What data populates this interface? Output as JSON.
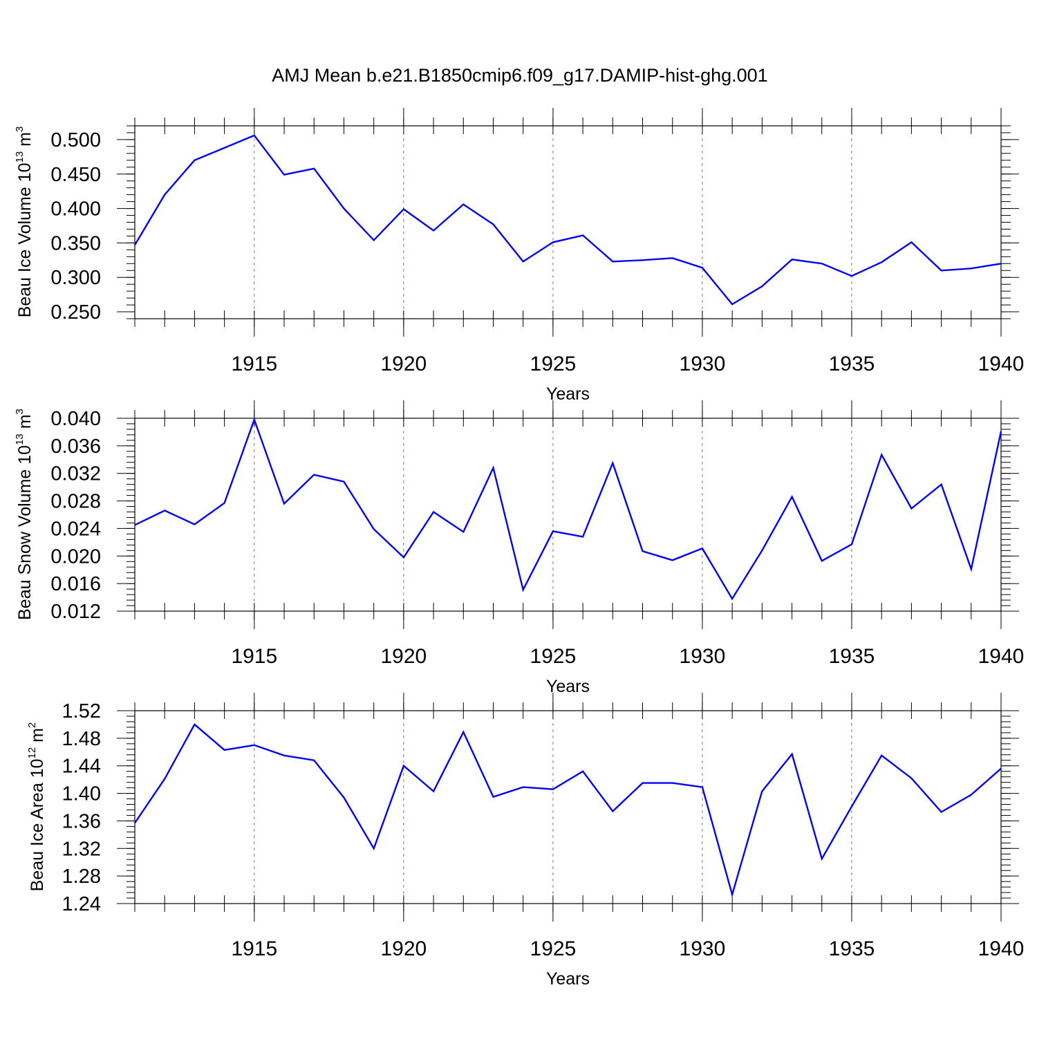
{
  "title": "AMJ Mean b.e21.B1850cmip6.f09_g17.DAMIP-hist-ghg.001",
  "line_color": "#0000ff",
  "chart_data": [
    {
      "type": "line",
      "ylabel": {
        "main": "Beau Ice Volume 10",
        "exp1": "13",
        "mid": " m",
        "exp2": "3"
      },
      "xlabel": "Years",
      "x": [
        1911,
        1912,
        1913,
        1914,
        1915,
        1916,
        1917,
        1918,
        1919,
        1920,
        1921,
        1922,
        1923,
        1924,
        1925,
        1926,
        1927,
        1928,
        1929,
        1930,
        1931,
        1932,
        1933,
        1934,
        1935,
        1936,
        1937,
        1938,
        1939,
        1940
      ],
      "values": [
        0.347,
        0.42,
        0.47,
        0.488,
        0.506,
        0.449,
        0.458,
        0.4,
        0.354,
        0.399,
        0.368,
        0.406,
        0.377,
        0.323,
        0.351,
        0.361,
        0.323,
        0.325,
        0.328,
        0.314,
        0.261,
        0.287,
        0.326,
        0.32,
        0.302,
        0.322,
        0.351,
        0.31,
        0.313,
        0.32
      ],
      "xlim": [
        1911,
        1940
      ],
      "ylim": [
        0.24,
        0.52
      ],
      "xticks": [
        "1915",
        "1920",
        "1925",
        "1930",
        "1935",
        "1940"
      ],
      "yticks": [
        "0.250",
        "0.300",
        "0.350",
        "0.400",
        "0.450",
        "0.500"
      ],
      "grid": "vertical dashed at major x ticks"
    },
    {
      "type": "line",
      "ylabel": {
        "main": "Beau Snow Volume 10",
        "exp1": "13",
        "mid": " m",
        "exp2": "3"
      },
      "xlabel": "Years",
      "x": [
        1911,
        1912,
        1913,
        1914,
        1915,
        1916,
        1917,
        1918,
        1919,
        1920,
        1921,
        1922,
        1923,
        1924,
        1925,
        1926,
        1927,
        1928,
        1929,
        1930,
        1931,
        1932,
        1933,
        1934,
        1935,
        1936,
        1937,
        1938,
        1939,
        1940
      ],
      "values": [
        0.0245,
        0.0266,
        0.0246,
        0.0277,
        0.0398,
        0.0276,
        0.0318,
        0.0308,
        0.0239,
        0.0198,
        0.0264,
        0.0235,
        0.0328,
        0.0151,
        0.0236,
        0.0228,
        0.0335,
        0.0207,
        0.0194,
        0.0211,
        0.0138,
        0.0208,
        0.0286,
        0.0193,
        0.0217,
        0.0347,
        0.0269,
        0.0304,
        0.0181,
        0.0381
      ],
      "xlim": [
        1911,
        1940
      ],
      "ylim": [
        0.012,
        0.04
      ],
      "xticks": [
        "1915",
        "1920",
        "1925",
        "1930",
        "1935",
        "1940"
      ],
      "yticks": [
        "0.012",
        "0.016",
        "0.020",
        "0.024",
        "0.028",
        "0.032",
        "0.036",
        "0.040"
      ],
      "grid": "vertical dashed at major x ticks"
    },
    {
      "type": "line",
      "ylabel": {
        "main": "Beau Ice Area 10",
        "exp1": "12",
        "mid": " m",
        "exp2": "2"
      },
      "xlabel": "Years",
      "x": [
        1911,
        1912,
        1913,
        1914,
        1915,
        1916,
        1917,
        1918,
        1919,
        1920,
        1921,
        1922,
        1923,
        1924,
        1925,
        1926,
        1927,
        1928,
        1929,
        1930,
        1931,
        1932,
        1933,
        1934,
        1935,
        1936,
        1937,
        1938,
        1939,
        1940
      ],
      "values": [
        1.357,
        1.421,
        1.5,
        1.463,
        1.47,
        1.455,
        1.448,
        1.394,
        1.32,
        1.44,
        1.403,
        1.489,
        1.395,
        1.409,
        1.406,
        1.432,
        1.374,
        1.415,
        1.415,
        1.409,
        1.253,
        1.403,
        1.457,
        1.305,
        1.381,
        1.455,
        1.422,
        1.373,
        1.398,
        1.436
      ],
      "xlim": [
        1911,
        1940
      ],
      "ylim": [
        1.24,
        1.52
      ],
      "xticks": [
        "1915",
        "1920",
        "1925",
        "1930",
        "1935",
        "1940"
      ],
      "yticks": [
        "1.24",
        "1.28",
        "1.32",
        "1.36",
        "1.40",
        "1.44",
        "1.48",
        "1.52"
      ],
      "grid": "vertical dashed at major x ticks"
    }
  ]
}
